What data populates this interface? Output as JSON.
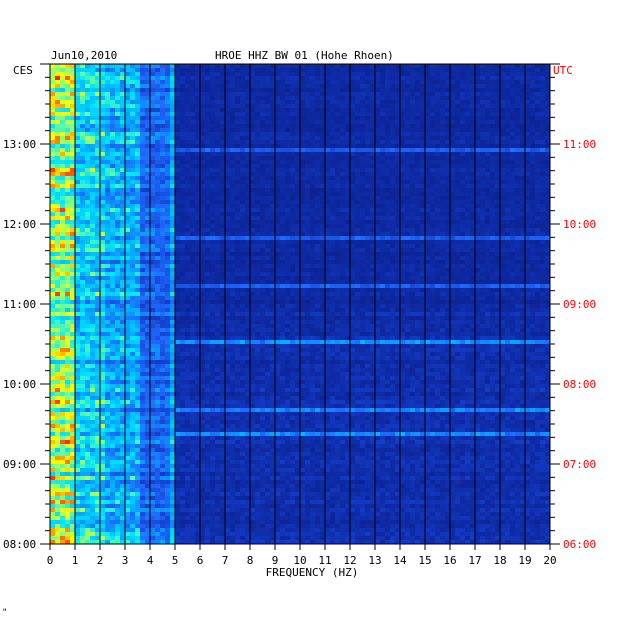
{
  "chart_data": {
    "type": "heatmap",
    "title": "HROE HHZ BW 01 (Hohe Rhoen)",
    "date": "Jun10,2010",
    "xlabel": "FREQUENCY (HZ)",
    "x_ticks": [
      "0",
      "1",
      "2",
      "3",
      "4",
      "5",
      "6",
      "7",
      "8",
      "9",
      "10",
      "11",
      "12",
      "13",
      "14",
      "15",
      "16",
      "17",
      "18",
      "19",
      "20"
    ],
    "xlim": [
      0,
      20
    ],
    "left_axis_label": "CES",
    "right_axis_label": "UTC",
    "left_time_ticks": [
      "13:00",
      "12:00",
      "11:00",
      "10:00",
      "09:00",
      "08:00"
    ],
    "right_time_ticks": [
      "11:00",
      "10:00",
      "09:00",
      "08:00",
      "07:00",
      "06:00"
    ],
    "time_range_local": [
      "08:00",
      "14:00"
    ],
    "colors": {
      "background": "#0a1e8c",
      "low": "#0a1e8c",
      "mid": "#1e6cff",
      "high": "#00e5ff",
      "peak": "#ffff00",
      "max": "#ff2000",
      "axis_red": "#ff0000"
    },
    "features": [
      {
        "band_hz": [
          0.2,
          1.0
        ],
        "intensity": "very high"
      },
      {
        "band_hz": [
          1.0,
          4.8
        ],
        "intensity": "high"
      },
      {
        "band_hz": [
          4.9,
          5.0
        ],
        "intensity": "line"
      }
    ]
  },
  "footer_mark": "\""
}
